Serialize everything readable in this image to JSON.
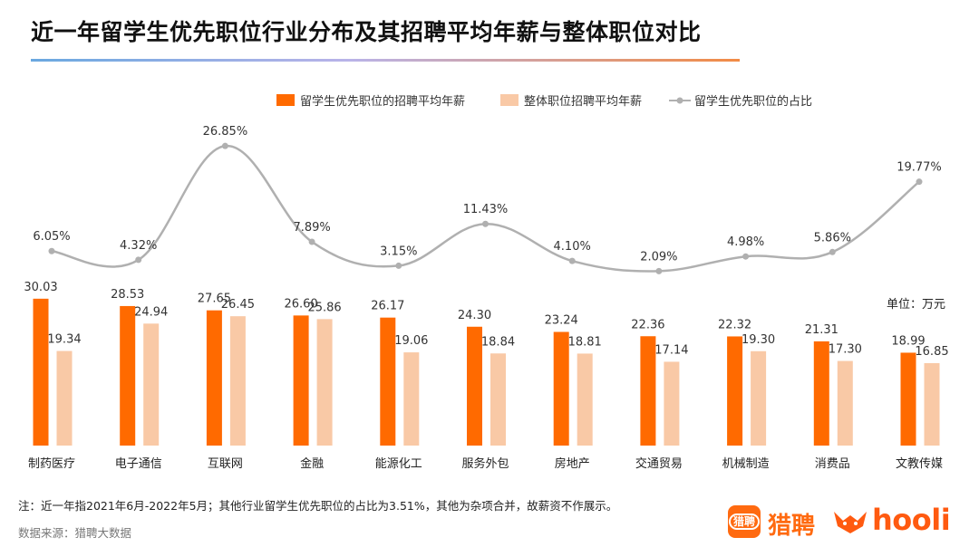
{
  "title": "近一年留学生优先职位行业分布及其招聘平均年薪与整体职位对比",
  "unit_label": "单位：万元",
  "footnote": "注：近一年指2021年6月-2022年5月；其他行业留学生优先职位的占比为3.51%，其他为杂项合并，故薪资不作展示。",
  "source": "数据来源：猎聘大数据",
  "logos": {
    "liepin_badge": "猎聘",
    "liepin_text": "猎聘",
    "hooli_text": "hooli"
  },
  "colors": {
    "series1": "#ff6a00",
    "series2": "#f9c9a6",
    "line": "#b0b0b0"
  },
  "chart_data": {
    "type": "bar",
    "categories": [
      "制药医疗",
      "电子通信",
      "互联网",
      "金融",
      "能源化工",
      "服务外包",
      "房地产",
      "交通贸易",
      "机械制造",
      "消费品",
      "文教传媒"
    ],
    "series": [
      {
        "name": "留学生优先职位的招聘平均年薪",
        "type": "bar",
        "values": [
          30.03,
          28.53,
          27.65,
          26.6,
          26.17,
          24.3,
          23.24,
          22.36,
          22.32,
          21.31,
          18.99
        ],
        "labels": [
          "30.03",
          "28.53",
          "27.65",
          "26.60",
          "26.17",
          "24.30",
          "23.24",
          "22.36",
          "22.32",
          "21.31",
          "18.99"
        ]
      },
      {
        "name": "整体职位招聘平均年薪",
        "type": "bar",
        "values": [
          19.34,
          24.94,
          26.45,
          25.86,
          19.06,
          18.84,
          18.81,
          17.14,
          19.3,
          17.3,
          16.85
        ],
        "labels": [
          "19.34",
          "24.94",
          "26.45",
          "25.86",
          "19.06",
          "18.84",
          "18.81",
          "17.14",
          "19.30",
          "17.30",
          "16.85"
        ]
      },
      {
        "name": "留学生优先职位的占比",
        "type": "line",
        "values": [
          6.05,
          4.32,
          26.85,
          7.89,
          3.15,
          11.43,
          4.1,
          2.09,
          4.98,
          5.86,
          19.77
        ],
        "labels": [
          "6.05%",
          "4.32%",
          "26.85%",
          "7.89%",
          "3.15%",
          "11.43%",
          "4.10%",
          "2.09%",
          "4.98%",
          "5.86%",
          "19.77%"
        ]
      }
    ],
    "legend": "top"
  }
}
